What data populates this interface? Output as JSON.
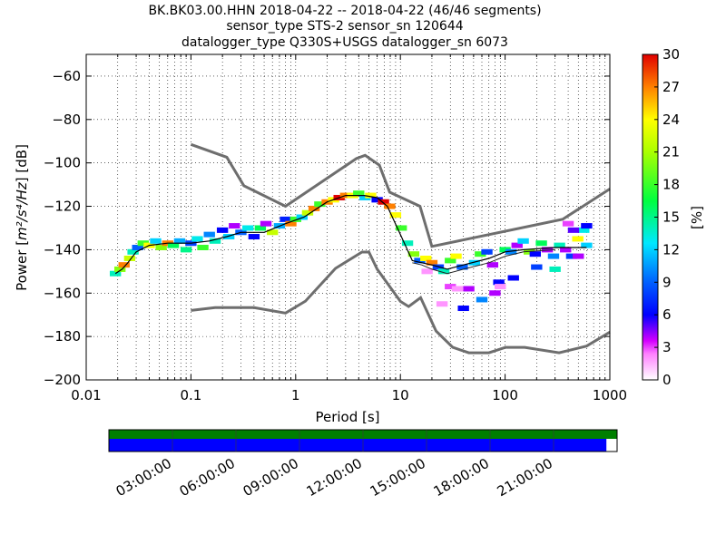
{
  "chart_data": {
    "type": "heatmap",
    "title_lines": [
      "BK.BK03.00.HHN   2018-04-22 -- 2018-04-22  (46/46 segments)",
      "sensor_type STS-2 sensor_sn 120644",
      "datalogger_type Q330S+USGS datalogger_sn 6073"
    ],
    "xlabel": "Period [s]",
    "ylabel_prefix": "Power [",
    "ylabel_units": "m²/s⁴/Hz",
    "ylabel_suffix": "] [dB]",
    "x_scale": "log",
    "xlim": [
      0.01,
      1000
    ],
    "ylim": [
      -200,
      -50
    ],
    "x_ticks": [
      0.01,
      0.1,
      1,
      10,
      100,
      1000
    ],
    "x_tick_labels": [
      "0.01",
      "0.1",
      "1",
      "10",
      "100",
      "1000"
    ],
    "y_ticks": [
      -200,
      -180,
      -160,
      -140,
      -120,
      -100,
      -80,
      -60
    ],
    "y_tick_labels": [
      "−200",
      "−180",
      "−160",
      "−140",
      "−120",
      "−100",
      "−80",
      "−60"
    ],
    "colorbar": {
      "label": "[%]",
      "range": [
        0,
        30
      ],
      "ticks": [
        0,
        3,
        6,
        9,
        12,
        15,
        18,
        21,
        24,
        27,
        30
      ],
      "tick_labels": [
        "0",
        "3",
        "6",
        "9",
        "12",
        "15",
        "18",
        "21",
        "24",
        "27",
        "30"
      ]
    },
    "grid": true,
    "noise_models": {
      "nhnm": {
        "x": [
          0.1,
          0.22,
          0.32,
          0.8,
          3.8,
          4.6,
          6.3,
          7.9,
          15.4,
          20,
          354,
          1000
        ],
        "y": [
          -91.5,
          -97.4,
          -110.5,
          -120.0,
          -98.0,
          -96.5,
          -101.0,
          -113.5,
          -120.0,
          -138.5,
          -126.0,
          -112.0
        ]
      },
      "nlnm": {
        "x": [
          0.1,
          0.17,
          0.4,
          0.8,
          1.24,
          2.4,
          4.3,
          5.0,
          6.0,
          10,
          12,
          15.6,
          21.9,
          31.6,
          45,
          70,
          101,
          154,
          328,
          600,
          1000
        ],
        "y": [
          -168.0,
          -166.7,
          -166.7,
          -169.2,
          -163.7,
          -148.6,
          -141.1,
          -141.1,
          -149.0,
          -163.8,
          -166.2,
          -162.1,
          -177.5,
          -185.0,
          -187.5,
          -187.5,
          -185.0,
          -185.0,
          -187.5,
          -184.4,
          -178.0
        ]
      },
      "median": {
        "x": [
          0.019,
          0.022,
          0.025,
          0.03,
          0.04,
          0.06,
          0.1,
          0.15,
          0.22,
          0.3,
          0.5,
          0.8,
          1.2,
          2,
          3,
          4.5,
          6,
          7.5,
          10,
          13,
          16,
          20,
          28,
          40,
          70,
          100,
          150,
          300,
          600
        ],
        "y": [
          -151,
          -149,
          -146,
          -141,
          -138,
          -137,
          -137,
          -136,
          -134,
          -132,
          -132,
          -128,
          -125,
          -118,
          -115,
          -115,
          -116,
          -120,
          -133,
          -145,
          -146,
          -147,
          -149,
          -147,
          -144,
          -141,
          -140,
          -139,
          -139
        ]
      },
      "min": {
        "x": [
          13,
          16,
          20,
          28,
          40,
          70,
          100,
          150,
          300
        ],
        "y": [
          -146,
          -147,
          -149,
          -151,
          -149,
          -146,
          -143,
          -141,
          -140
        ]
      }
    },
    "ppsd_cells": [
      [
        0.019,
        -151,
        14
      ],
      [
        0.021,
        -149,
        20
      ],
      [
        0.023,
        -147,
        27
      ],
      [
        0.026,
        -144,
        22
      ],
      [
        0.028,
        -141,
        14
      ],
      [
        0.031,
        -139,
        9
      ],
      [
        0.035,
        -137,
        18
      ],
      [
        0.04,
        -138,
        24
      ],
      [
        0.046,
        -136,
        12
      ],
      [
        0.052,
        -139,
        20
      ],
      [
        0.06,
        -137,
        27
      ],
      [
        0.068,
        -138,
        16
      ],
      [
        0.078,
        -136,
        11
      ],
      [
        0.09,
        -140,
        15
      ],
      [
        0.1,
        -137,
        8
      ],
      [
        0.115,
        -135,
        13
      ],
      [
        0.13,
        -139,
        18
      ],
      [
        0.15,
        -133,
        10
      ],
      [
        0.17,
        -136,
        14
      ],
      [
        0.2,
        -131,
        6
      ],
      [
        0.23,
        -134,
        12
      ],
      [
        0.26,
        -129,
        4
      ],
      [
        0.3,
        -132,
        9
      ],
      [
        0.35,
        -130,
        13
      ],
      [
        0.4,
        -134,
        6
      ],
      [
        0.46,
        -130,
        16
      ],
      [
        0.52,
        -128,
        4
      ],
      [
        0.6,
        -132,
        22
      ],
      [
        0.7,
        -129,
        11
      ],
      [
        0.8,
        -126,
        7
      ],
      [
        0.9,
        -128,
        27
      ],
      [
        1.0,
        -126,
        18
      ],
      [
        1.15,
        -125,
        12
      ],
      [
        1.3,
        -123,
        22
      ],
      [
        1.5,
        -121,
        27
      ],
      [
        1.7,
        -119,
        18
      ],
      [
        2.0,
        -118,
        27
      ],
      [
        2.3,
        -117,
        24
      ],
      [
        2.6,
        -116,
        30
      ],
      [
        3.0,
        -115,
        27
      ],
      [
        3.5,
        -115,
        24
      ],
      [
        4.0,
        -114,
        18
      ],
      [
        4.6,
        -116,
        12
      ],
      [
        5.2,
        -115,
        24
      ],
      [
        6.0,
        -117,
        6
      ],
      [
        6.9,
        -118,
        30
      ],
      [
        7.9,
        -120,
        27
      ],
      [
        9.0,
        -124,
        24
      ],
      [
        10.2,
        -130,
        18
      ],
      [
        11.7,
        -137,
        14
      ],
      [
        13.4,
        -142,
        20
      ],
      [
        15.3,
        -145,
        9
      ],
      [
        17.5,
        -144,
        24
      ],
      [
        20,
        -146,
        27
      ],
      [
        23,
        -148,
        8
      ],
      [
        26,
        -150,
        14
      ],
      [
        30,
        -145,
        18
      ],
      [
        34,
        -143,
        24
      ],
      [
        39,
        -148,
        9
      ],
      [
        45,
        -158,
        4
      ],
      [
        51,
        -146,
        12
      ],
      [
        58,
        -142,
        18
      ],
      [
        67,
        -141,
        8
      ],
      [
        76,
        -147,
        4
      ],
      [
        87,
        -155,
        6
      ],
      [
        100,
        -140,
        16
      ],
      [
        114,
        -141,
        10
      ],
      [
        130,
        -138,
        4
      ],
      [
        149,
        -136,
        12
      ],
      [
        170,
        -141,
        20
      ],
      [
        194,
        -142,
        6
      ],
      [
        222,
        -137,
        16
      ],
      [
        253,
        -140,
        4
      ],
      [
        290,
        -143,
        10
      ],
      [
        331,
        -138,
        14
      ],
      [
        378,
        -140,
        4
      ],
      [
        432,
        -143,
        8
      ],
      [
        494,
        -135,
        24
      ],
      [
        564,
        -131,
        13
      ],
      [
        600,
        -129,
        6
      ],
      [
        500,
        -143,
        4
      ],
      [
        200,
        -148,
        8
      ],
      [
        300,
        -149,
        14
      ],
      [
        120,
        -153,
        6
      ],
      [
        80,
        -160,
        4
      ],
      [
        60,
        -163,
        10
      ],
      [
        40,
        -167,
        6
      ],
      [
        30,
        -157,
        3
      ],
      [
        18,
        -150,
        2
      ],
      [
        25,
        -165,
        2
      ],
      [
        35,
        -158,
        2
      ],
      [
        90,
        -157,
        2
      ],
      [
        400,
        -128,
        3
      ],
      [
        450,
        -131,
        5
      ],
      [
        600,
        -138,
        12
      ]
    ],
    "timeline": {
      "tick_labels": [
        "03:00:00",
        "06:00:00",
        "09:00:00",
        "12:00:00",
        "15:00:00",
        "18:00:00",
        "21:00:00"
      ],
      "coverage_fraction": 0.979,
      "colors": {
        "top": "#007f00",
        "bottom": "#0000ff"
      }
    }
  }
}
